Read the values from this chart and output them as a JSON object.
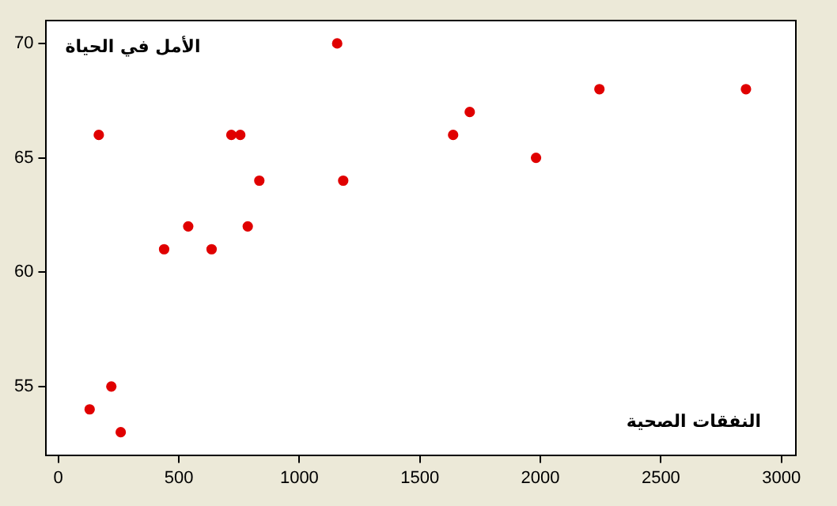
{
  "chart_data": {
    "type": "scatter",
    "xlabel": "النفقات الصحية",
    "ylabel": "الأمل في الحياة",
    "x": [
      1157,
      168,
      718,
      755,
      834,
      1182,
      539,
      786,
      439,
      636,
      220,
      130,
      259,
      1638,
      1707,
      1982,
      2245,
      2853
    ],
    "series": [
      {
        "color": "#e00000",
        "values": [
          70,
          66,
          66,
          66,
          64,
          64,
          62,
          62,
          61,
          61,
          55,
          54,
          53,
          66,
          67,
          65,
          68,
          68
        ]
      }
    ],
    "xlim": [
      -50,
      3060
    ],
    "ylim": [
      52,
      71
    ],
    "xticks": [
      0,
      500,
      1000,
      1500,
      2000,
      2500,
      3000
    ],
    "yticks": [
      55,
      60,
      65,
      70
    ],
    "grid": false,
    "legend": false,
    "marker": "circle"
  }
}
